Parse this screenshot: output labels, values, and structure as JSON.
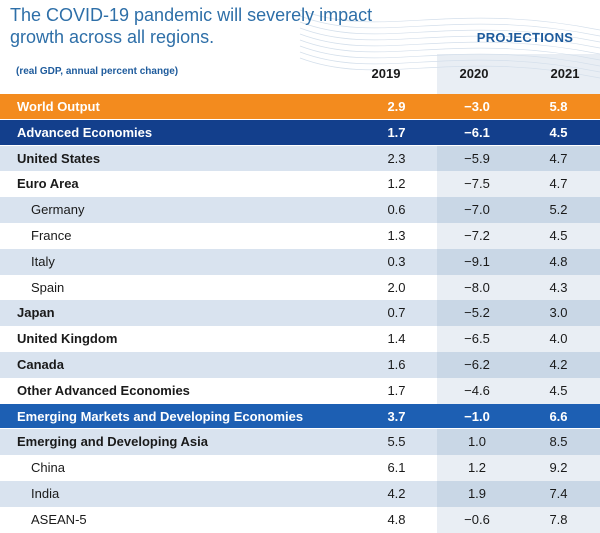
{
  "header": {
    "title_line1": "The COVID-19 pandemic will severely impact",
    "title_line2": "growth across all regions.",
    "projections_label": "PROJECTIONS",
    "subtitle": "(real GDP, annual percent change)"
  },
  "colors": {
    "orange": "#f38b1e",
    "navy": "#133f8c",
    "blue": "#1d5fb3",
    "title_blue": "#2e6fa8"
  },
  "chart_data": {
    "type": "table",
    "title": "The COVID-19 pandemic will severely impact growth across all regions.",
    "subtitle": "(real GDP, annual percent change)",
    "projections_label": "PROJECTIONS",
    "columns": [
      "2019",
      "2020",
      "2021"
    ],
    "rows": [
      {
        "label": "World Output",
        "values": [
          "2.9",
          "−3.0",
          "5.8"
        ],
        "style": "orange"
      },
      {
        "label": "Advanced Economies",
        "values": [
          "1.7",
          "−6.1",
          "4.5"
        ],
        "style": "navy"
      },
      {
        "label": "United States",
        "values": [
          "2.3",
          "−5.9",
          "4.7"
        ],
        "style": "shade-bold"
      },
      {
        "label": "Euro Area",
        "values": [
          "1.2",
          "−7.5",
          "4.7"
        ],
        "style": "plain-bold"
      },
      {
        "label": "Germany",
        "values": [
          "0.6",
          "−7.0",
          "5.2"
        ],
        "style": "shade-indent"
      },
      {
        "label": "France",
        "values": [
          "1.3",
          "−7.2",
          "4.5"
        ],
        "style": "plain-indent"
      },
      {
        "label": "Italy",
        "values": [
          "0.3",
          "−9.1",
          "4.8"
        ],
        "style": "shade-indent"
      },
      {
        "label": "Spain",
        "values": [
          "2.0",
          "−8.0",
          "4.3"
        ],
        "style": "plain-indent"
      },
      {
        "label": "Japan",
        "values": [
          "0.7",
          "−5.2",
          "3.0"
        ],
        "style": "shade-bold"
      },
      {
        "label": "United Kingdom",
        "values": [
          "1.4",
          "−6.5",
          "4.0"
        ],
        "style": "plain-bold"
      },
      {
        "label": "Canada",
        "values": [
          "1.6",
          "−6.2",
          "4.2"
        ],
        "style": "shade-bold"
      },
      {
        "label": "Other Advanced Economies",
        "values": [
          "1.7",
          "−4.6",
          "4.5"
        ],
        "style": "plain-bold"
      },
      {
        "label": "Emerging Markets and Developing Economies",
        "values": [
          "3.7",
          "−1.0",
          "6.6"
        ],
        "style": "blue"
      },
      {
        "label": "Emerging and Developing Asia",
        "values": [
          "5.5",
          "1.0",
          "8.5"
        ],
        "style": "shade-bold"
      },
      {
        "label": "China",
        "values": [
          "6.1",
          "1.2",
          "9.2"
        ],
        "style": "plain-indent"
      },
      {
        "label": "India",
        "values": [
          "4.2",
          "1.9",
          "7.4"
        ],
        "style": "shade-indent"
      },
      {
        "label": "ASEAN-5",
        "values": [
          "4.8",
          "−0.6",
          "7.8"
        ],
        "style": "plain-indent"
      }
    ]
  }
}
